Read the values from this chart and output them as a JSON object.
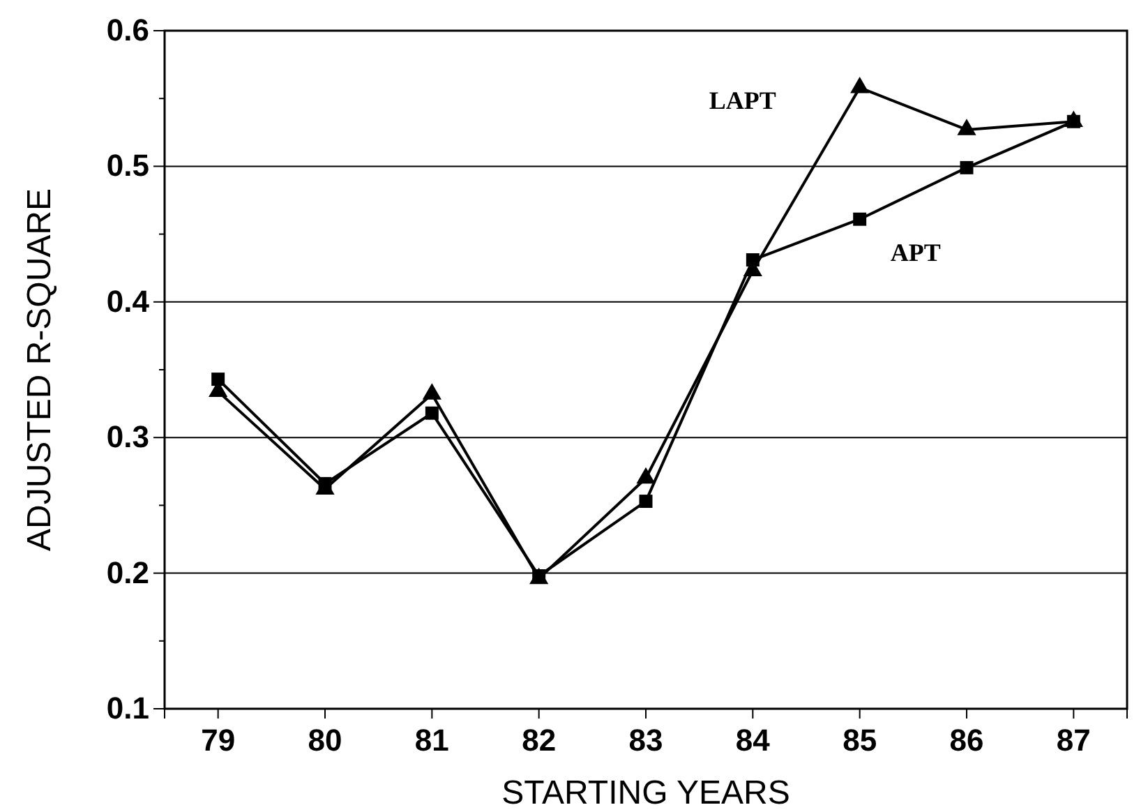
{
  "chart_data": {
    "type": "line",
    "xlabel": "STARTING YEARS",
    "ylabel": "ADJUSTED R-SQUARE",
    "categories": [
      "79",
      "80",
      "81",
      "82",
      "83",
      "84",
      "85",
      "86",
      "87"
    ],
    "series": [
      {
        "name": "LAPT",
        "color": "#000000",
        "marker": "triangle",
        "values": [
          0.334,
          0.262,
          0.332,
          0.196,
          0.27,
          0.423,
          0.558,
          0.527,
          0.533
        ]
      },
      {
        "name": "APT",
        "color": "#000000",
        "marker": "square",
        "values": [
          0.343,
          0.266,
          0.318,
          0.198,
          0.253,
          0.431,
          0.461,
          0.499,
          0.533
        ]
      }
    ],
    "ylim": [
      0.1,
      0.6
    ],
    "yticks": [
      0.1,
      0.2,
      0.3,
      0.4,
      0.5,
      0.6
    ],
    "grid": "y",
    "line_style": "solid"
  }
}
